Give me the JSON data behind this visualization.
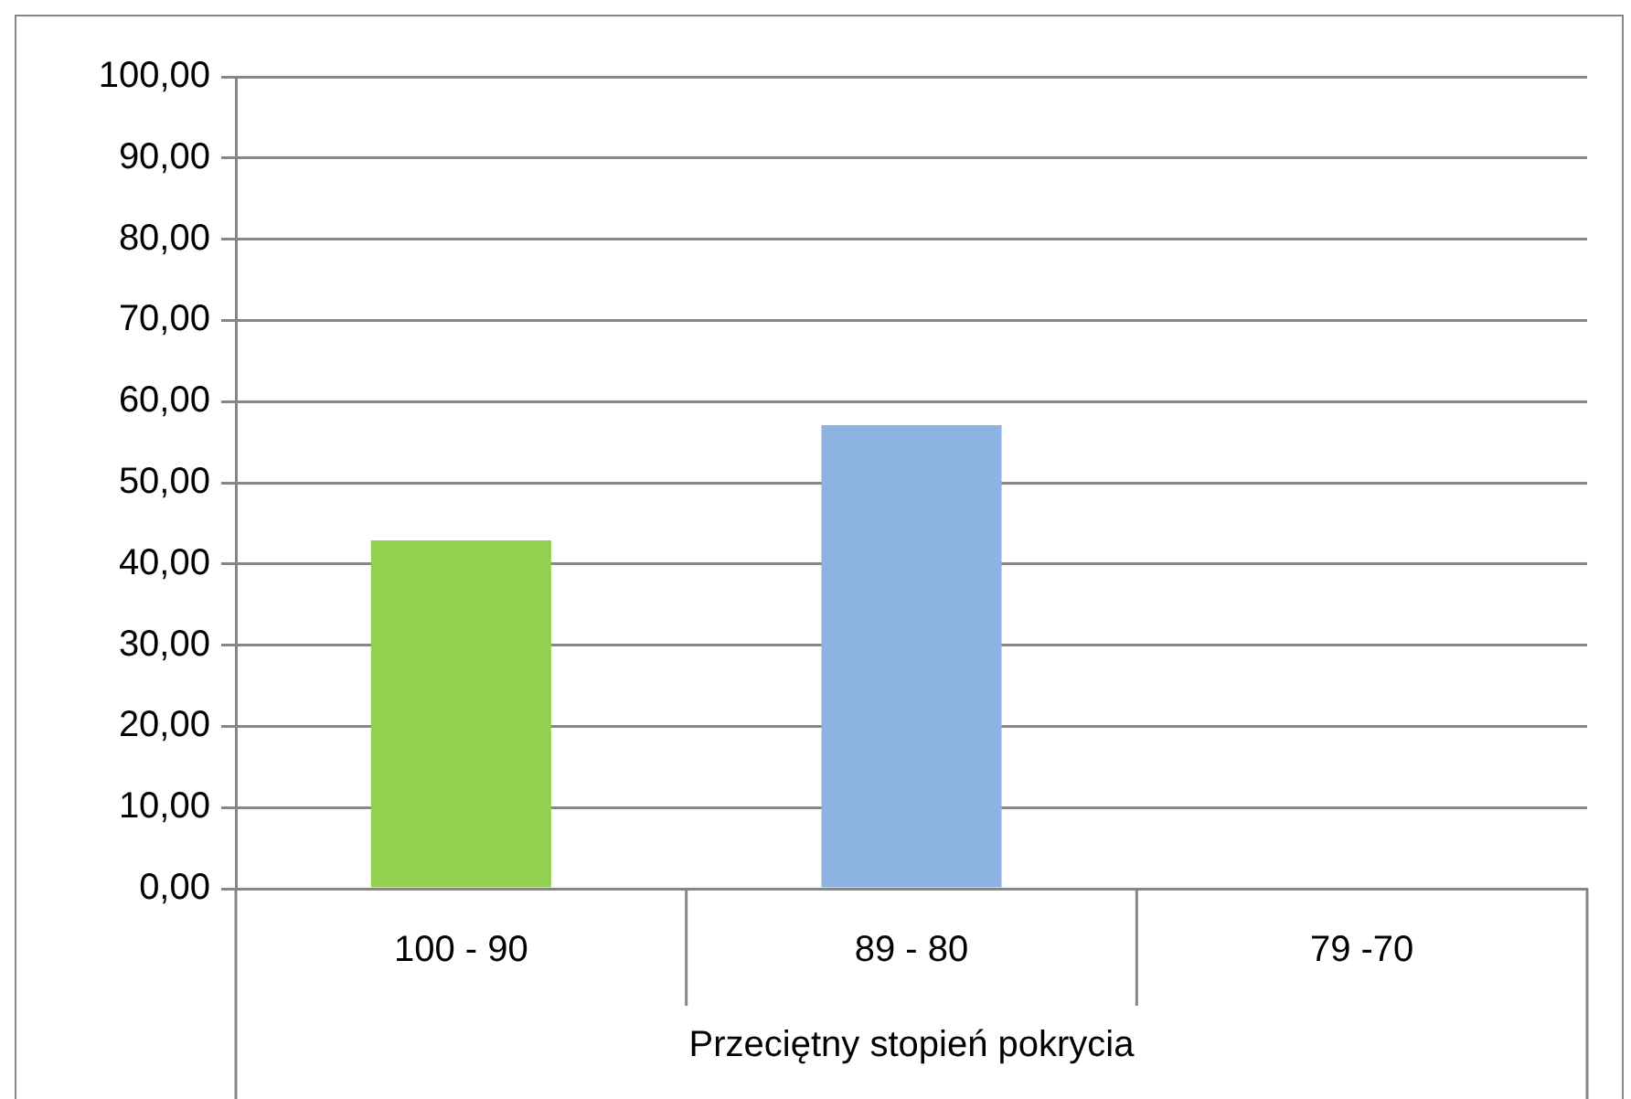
{
  "chart_data": {
    "type": "bar",
    "xlabel": "Przeciętny stopień pokrycia",
    "categories": [
      "100 - 90",
      "89 - 80",
      "79 -70"
    ],
    "values": [
      42.9,
      57.1,
      null
    ],
    "colors": [
      "#92d050",
      "#8db3e2",
      null
    ],
    "ylim": [
      0,
      100
    ],
    "yticks": [
      {
        "value": 0,
        "label": "0,00"
      },
      {
        "value": 10,
        "label": "10,00"
      },
      {
        "value": 20,
        "label": "20,00"
      },
      {
        "value": 30,
        "label": "30,00"
      },
      {
        "value": 40,
        "label": "40,00"
      },
      {
        "value": 50,
        "label": "50,00"
      },
      {
        "value": 60,
        "label": "60,00"
      },
      {
        "value": 70,
        "label": "70,00"
      },
      {
        "value": 80,
        "label": "80,00"
      },
      {
        "value": 90,
        "label": "90,00"
      },
      {
        "value": 100,
        "label": "100,00"
      }
    ],
    "grid": "y",
    "legend": false
  }
}
